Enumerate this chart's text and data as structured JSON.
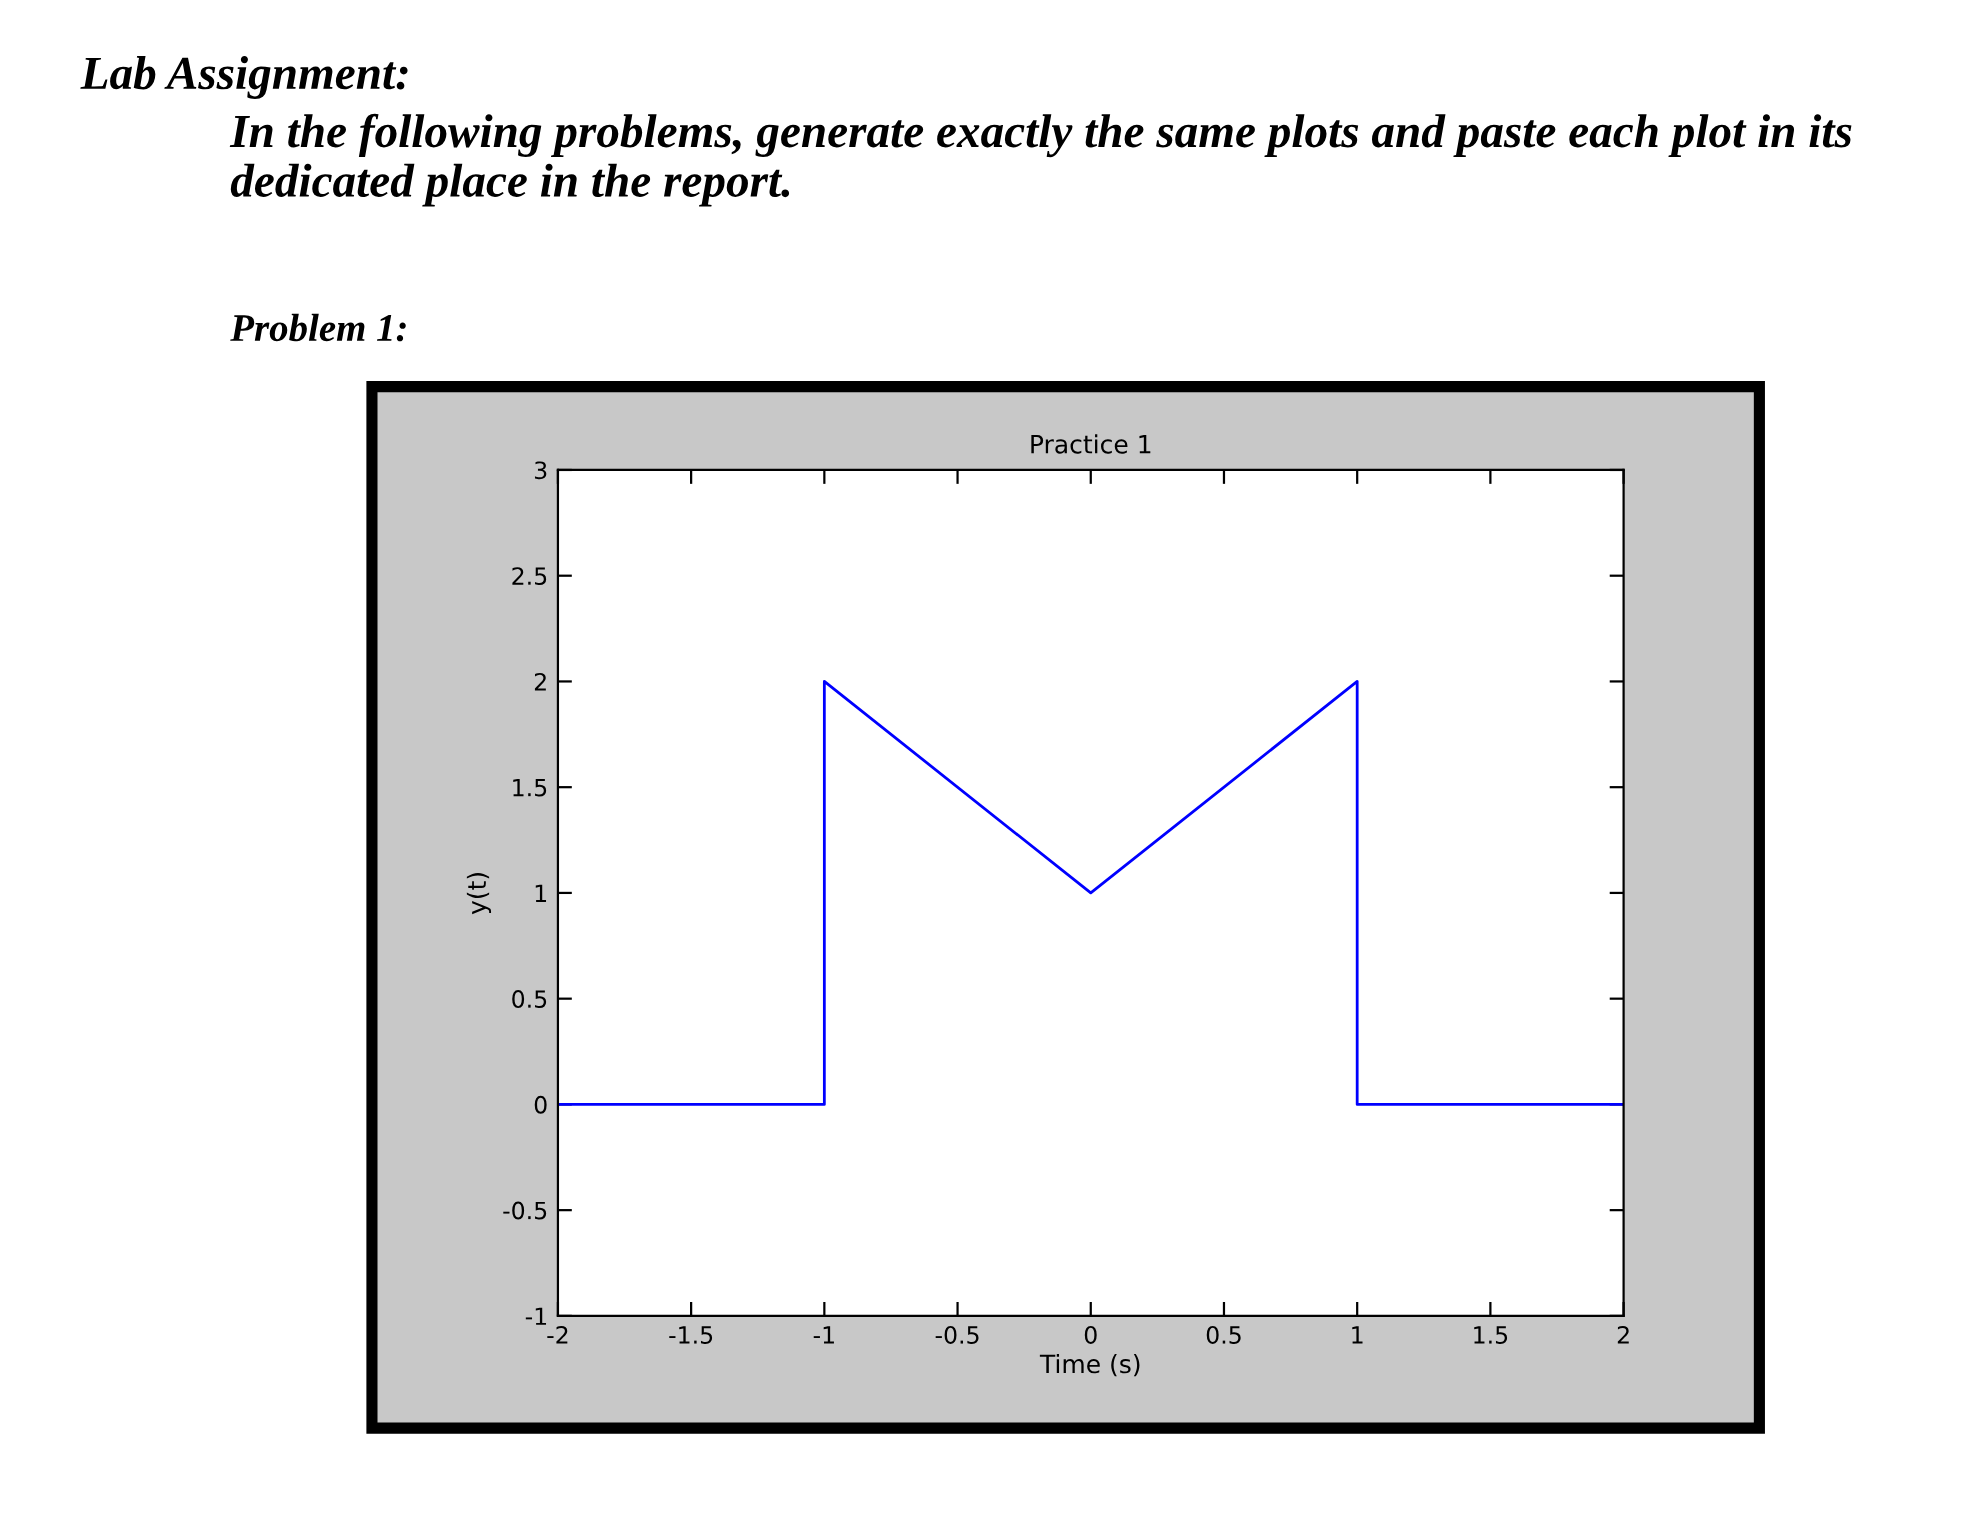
{
  "chart_data": {
    "type": "line",
    "title": "Practice 1",
    "xlabel": "Time (s)",
    "ylabel": "y(t)",
    "annotations": [
      "Lab Assignment:",
      "In the following problems, generate exactly the same plots and paste each plot in its dedicated place in the report.",
      "Problem 1:"
    ],
    "series": [
      {
        "color": "#0000ff",
        "x": [
          -2,
          -1,
          -1,
          0,
          1,
          1,
          2
        ],
        "values": [
          0,
          0,
          2,
          1,
          2,
          0,
          0
        ]
      }
    ],
    "xlim": [
      -2,
      2
    ],
    "ylim": [
      -1,
      3
    ],
    "xticks": [
      -2,
      -1.5,
      -1,
      -0.5,
      0,
      0.5,
      1,
      1.5,
      2
    ],
    "yticks": [
      -1,
      -0.5,
      0,
      0.5,
      1,
      1.5,
      2,
      2.5,
      3
    ],
    "grid": false,
    "legend": false,
    "marker": "none",
    "line_style": "solid"
  }
}
